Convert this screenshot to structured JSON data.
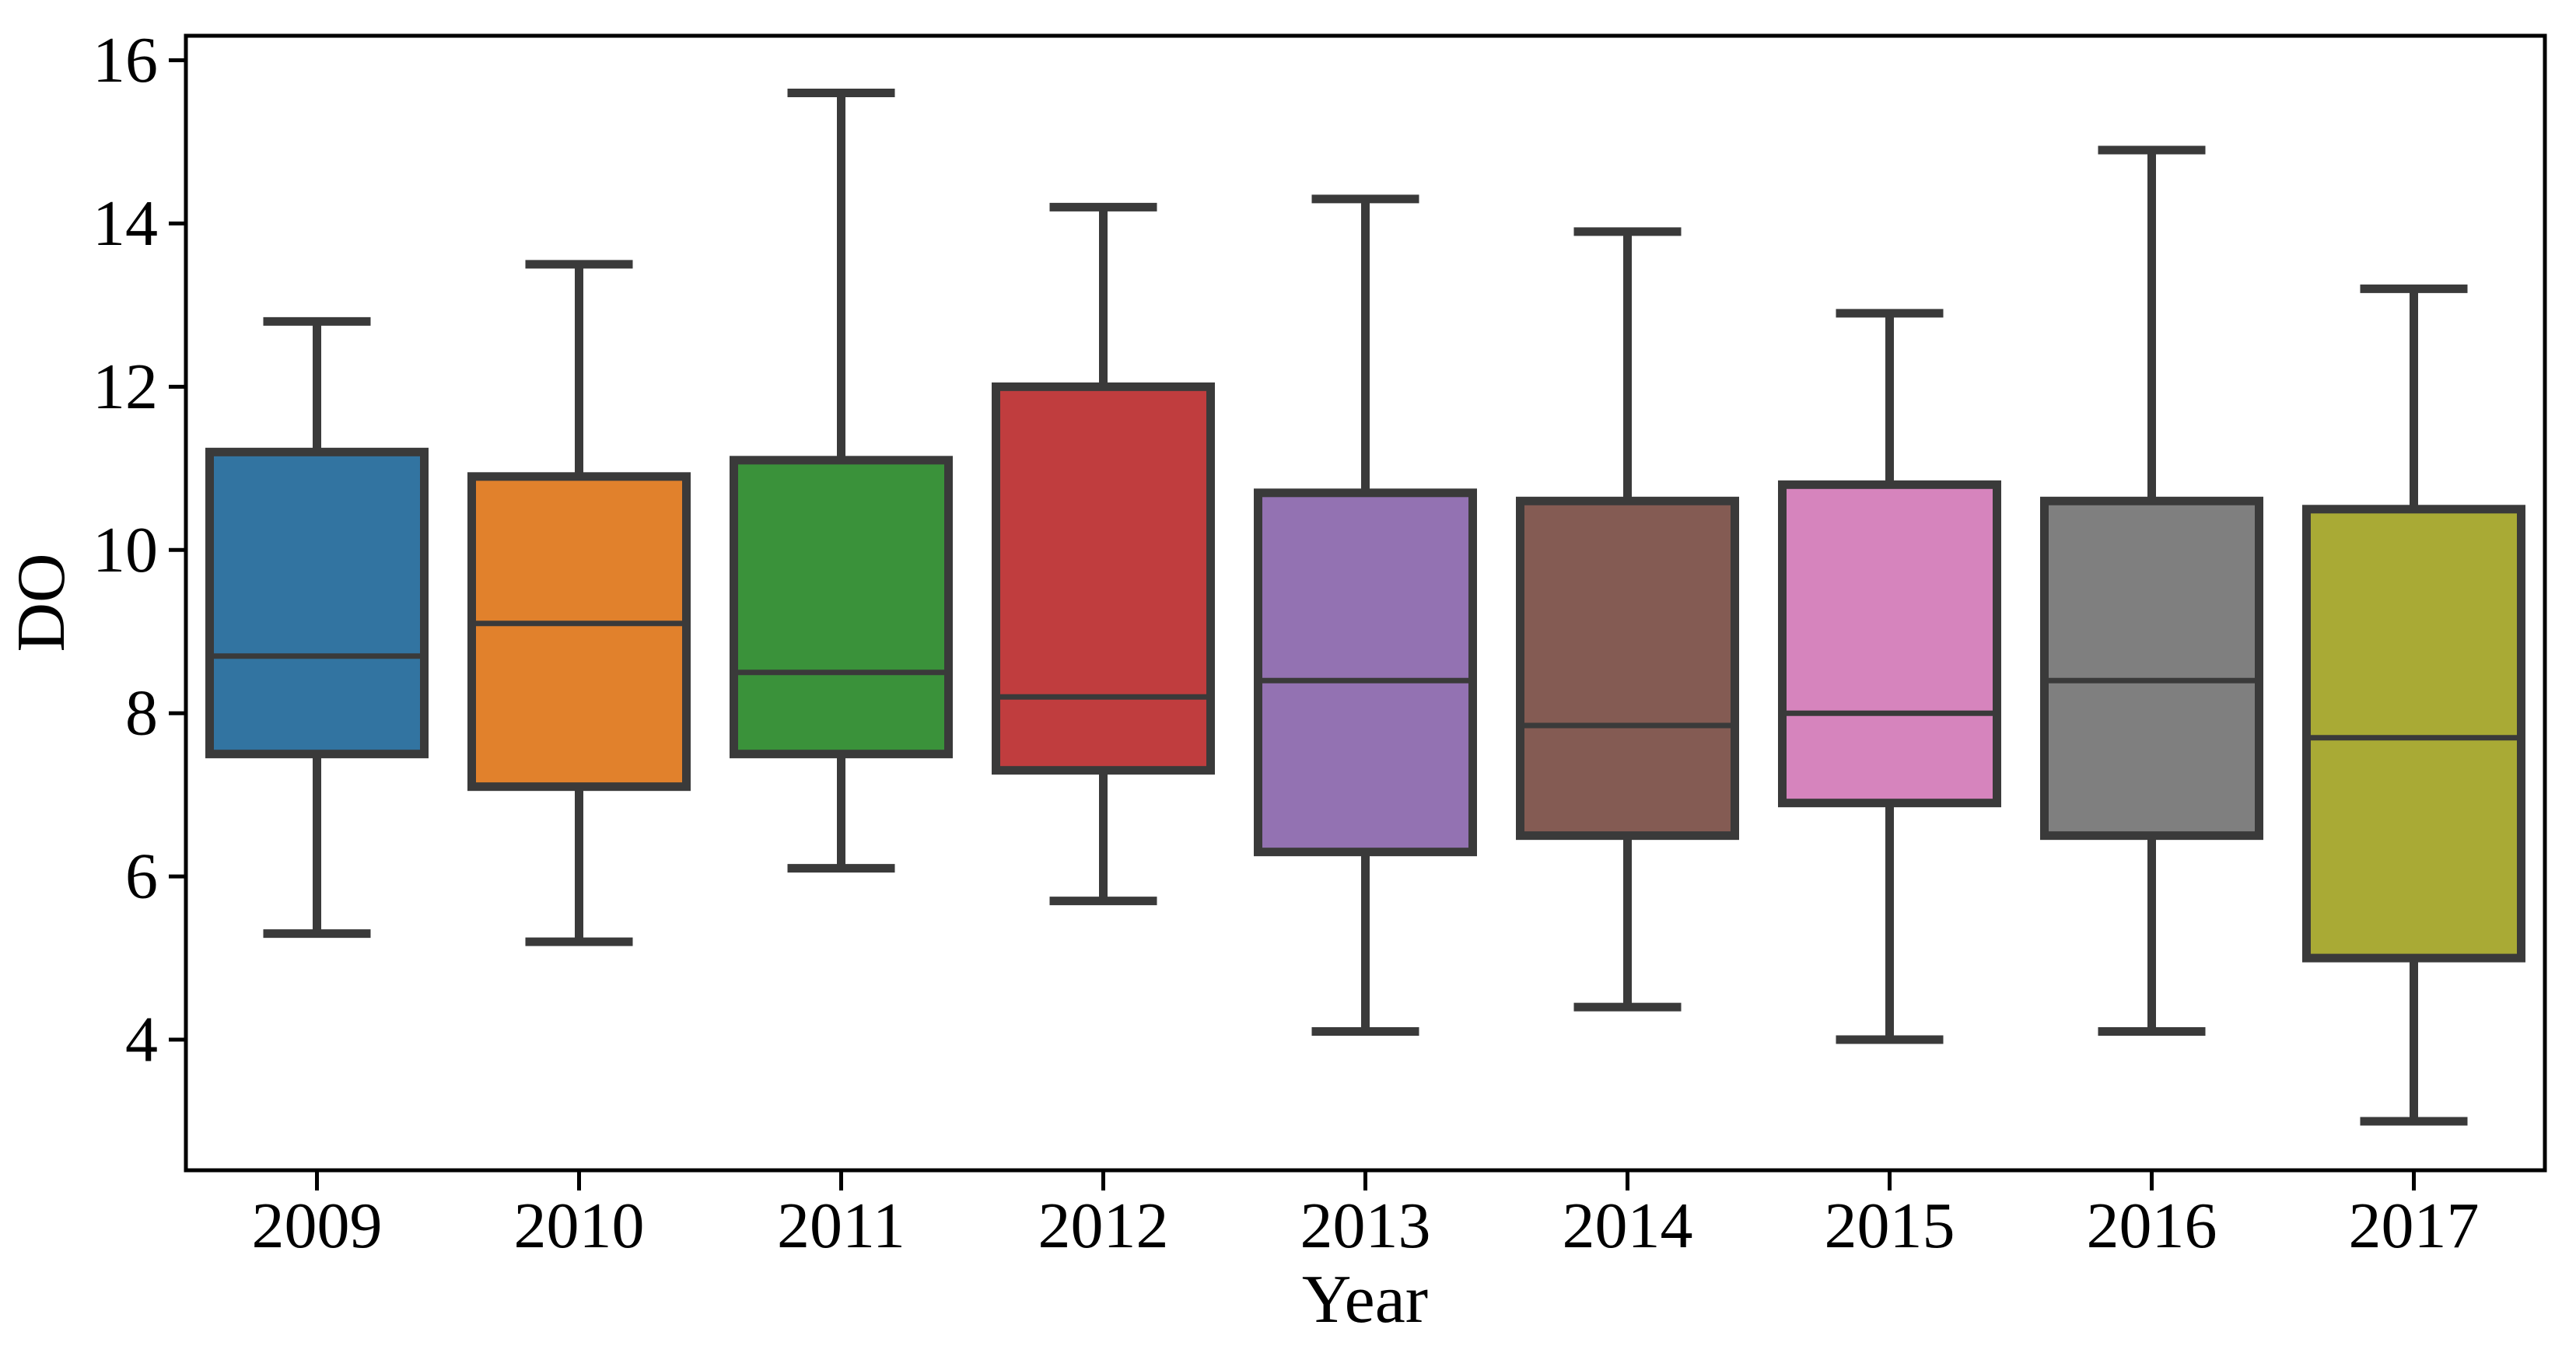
{
  "chart_data": {
    "type": "box",
    "title": "",
    "xlabel": "Year",
    "ylabel": "DO",
    "categories": [
      "2009",
      "2010",
      "2011",
      "2012",
      "2013",
      "2014",
      "2015",
      "2016",
      "2017"
    ],
    "yticks": [
      4,
      6,
      8,
      10,
      12,
      14,
      16
    ],
    "ylim": [
      2.4,
      16.3
    ],
    "grid": false,
    "legend": "none",
    "background": "#ffffff",
    "frame_color": "#000000",
    "element_color": "#3a3a3a",
    "text_color": "#000000",
    "series": [
      {
        "category": "2009",
        "color": "#3274a1",
        "whisker_low": 5.3,
        "q1": 7.5,
        "median": 8.7,
        "q3": 11.2,
        "whisker_high": 12.8
      },
      {
        "category": "2010",
        "color": "#e1812c",
        "whisker_low": 5.2,
        "q1": 7.1,
        "median": 9.1,
        "q3": 10.9,
        "whisker_high": 13.5
      },
      {
        "category": "2011",
        "color": "#3a923a",
        "whisker_low": 6.1,
        "q1": 7.5,
        "median": 8.5,
        "q3": 11.1,
        "whisker_high": 15.6
      },
      {
        "category": "2012",
        "color": "#c03d3e",
        "whisker_low": 5.7,
        "q1": 7.3,
        "median": 8.2,
        "q3": 12.0,
        "whisker_high": 14.2
      },
      {
        "category": "2013",
        "color": "#9372b2",
        "whisker_low": 4.1,
        "q1": 6.3,
        "median": 8.4,
        "q3": 10.7,
        "whisker_high": 14.3
      },
      {
        "category": "2014",
        "color": "#845b53",
        "whisker_low": 4.4,
        "q1": 6.5,
        "median": 7.85,
        "q3": 10.6,
        "whisker_high": 13.9
      },
      {
        "category": "2015",
        "color": "#d684bd",
        "whisker_low": 4.0,
        "q1": 6.9,
        "median": 8.0,
        "q3": 10.8,
        "whisker_high": 12.9
      },
      {
        "category": "2016",
        "color": "#7f7f7f",
        "whisker_low": 4.1,
        "q1": 6.5,
        "median": 8.4,
        "q3": 10.6,
        "whisker_high": 14.9
      },
      {
        "category": "2017",
        "color": "#a9aa35",
        "whisker_low": 3.0,
        "q1": 5.0,
        "median": 7.7,
        "q3": 10.5,
        "whisker_high": 13.2
      }
    ]
  }
}
